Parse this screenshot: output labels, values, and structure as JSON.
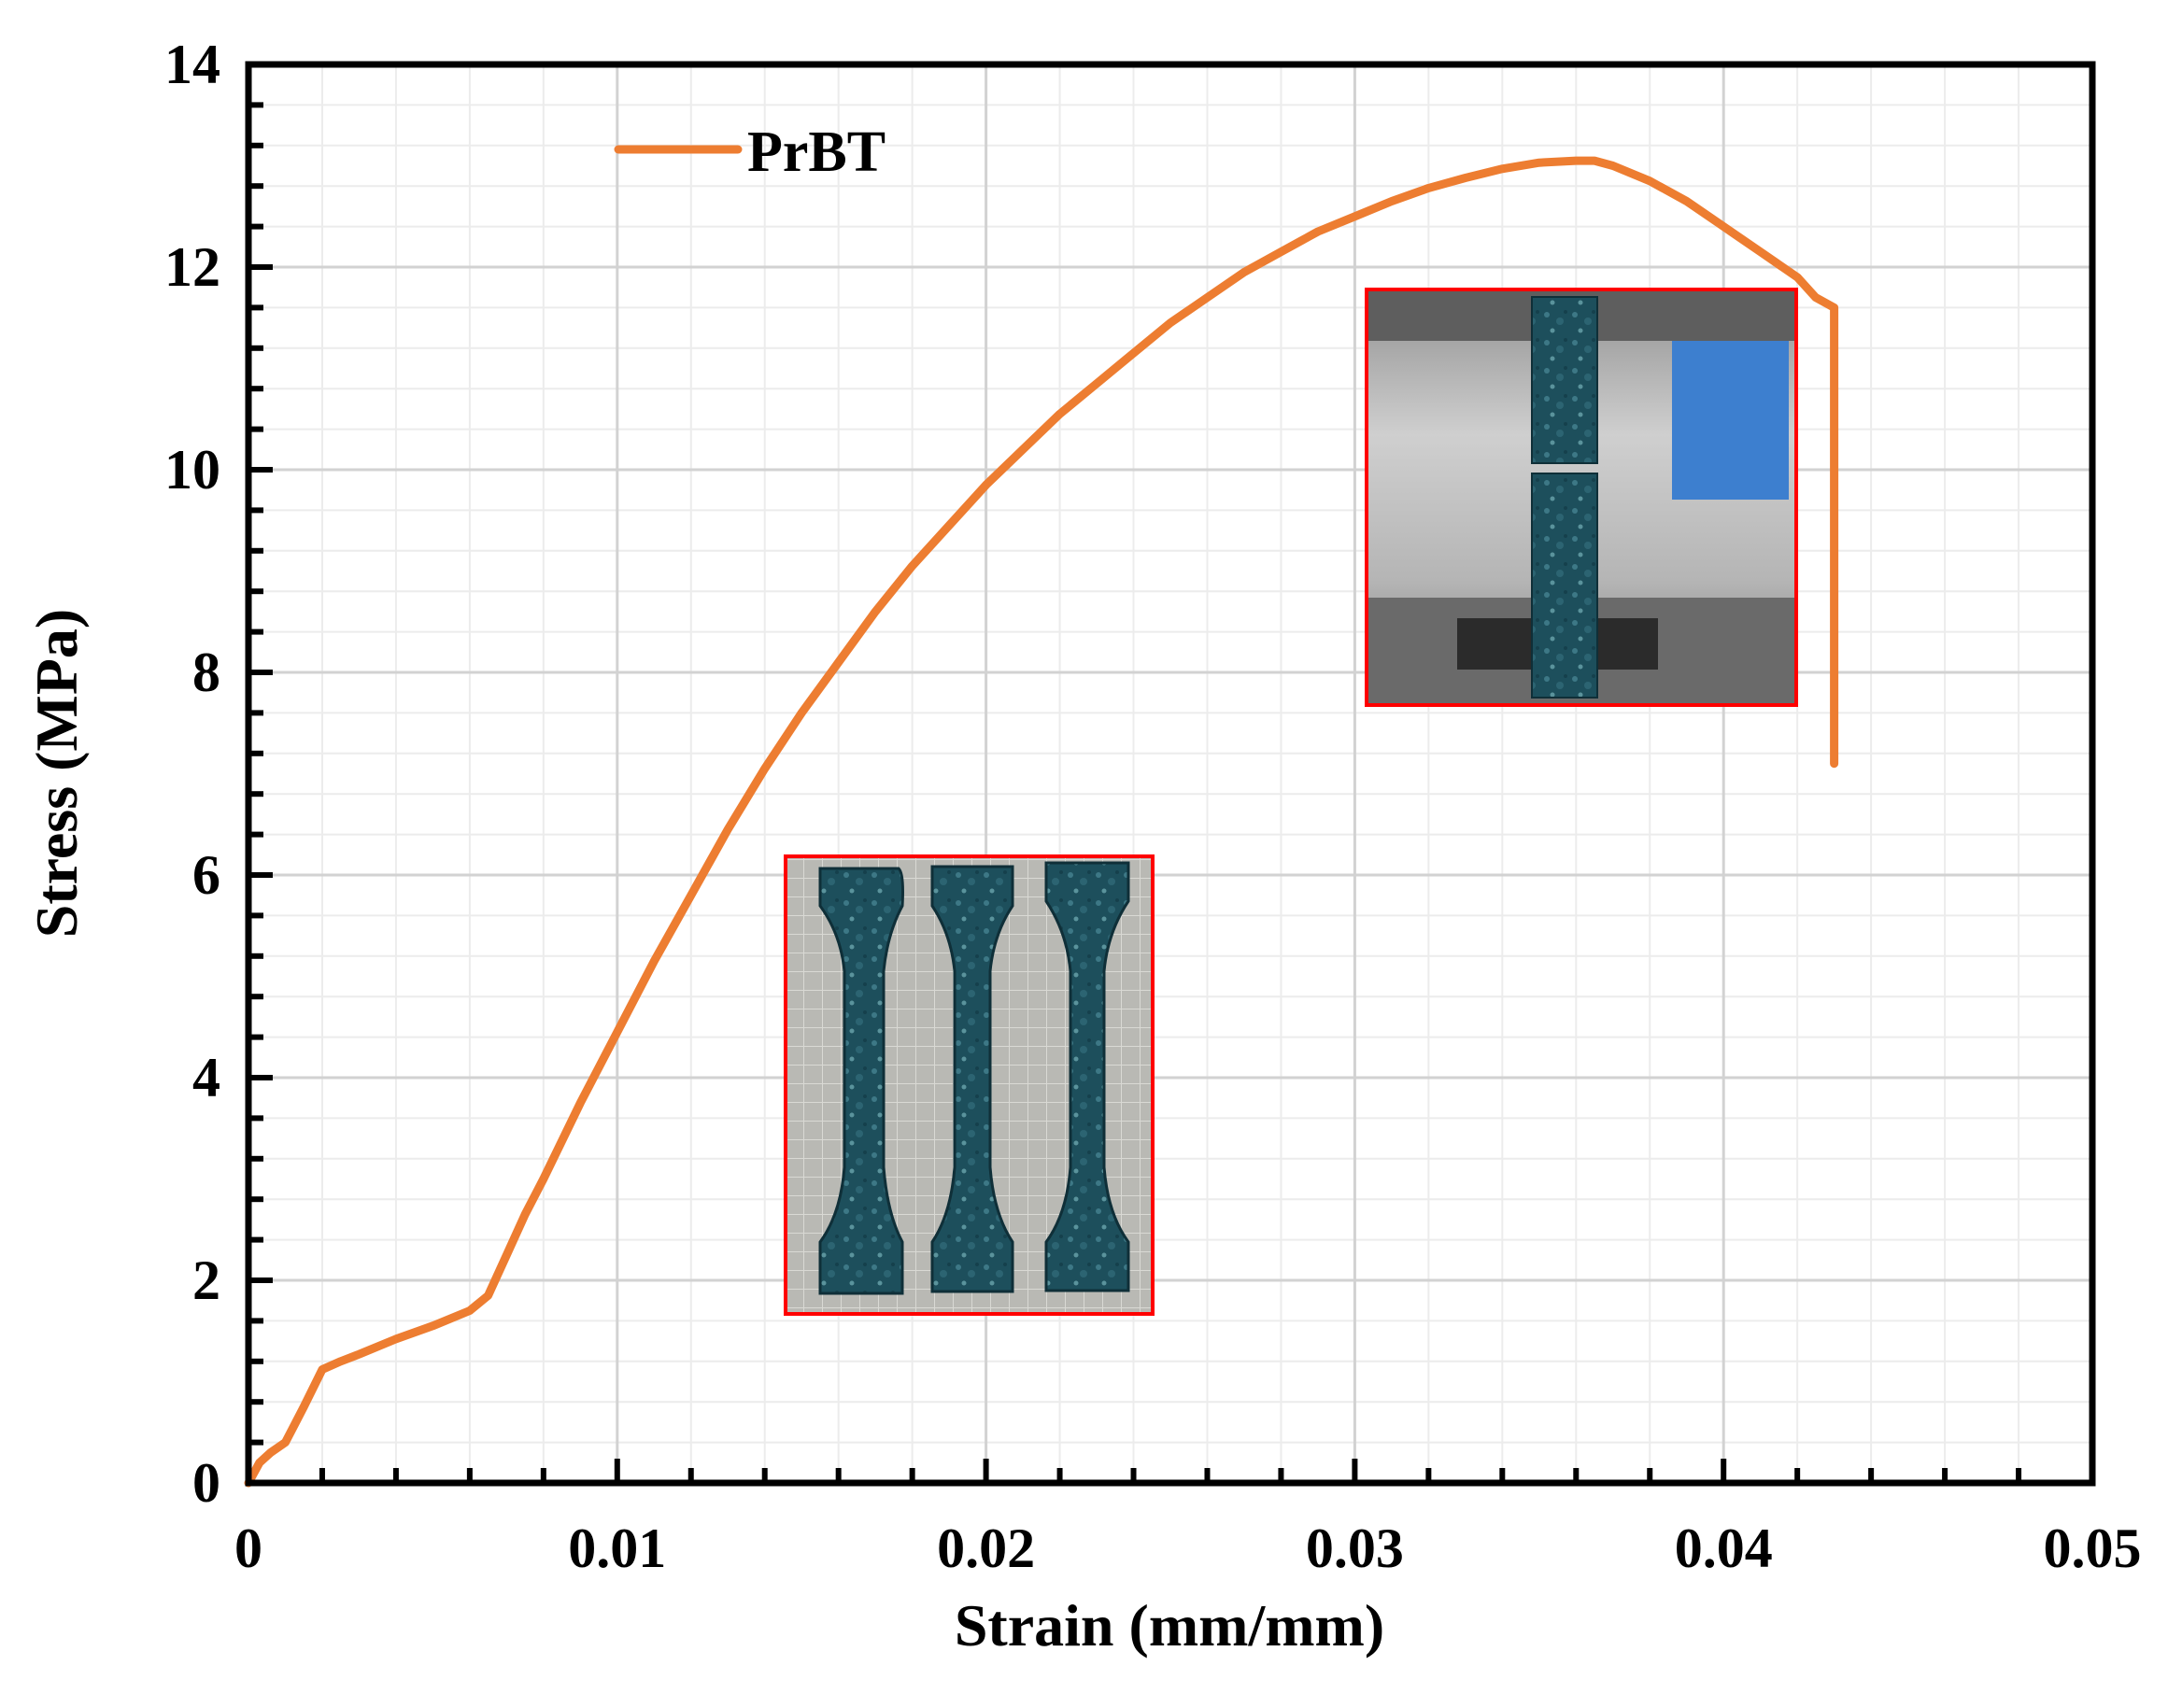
{
  "chart_data": {
    "type": "line",
    "title": "",
    "xlabel": "Strain (mm/mm)",
    "ylabel": "Stress (MPa)",
    "xlim": [
      0,
      0.05
    ],
    "ylim": [
      0,
      14
    ],
    "x_ticks": [
      0,
      0.01,
      0.02,
      0.03,
      0.04,
      0.05
    ],
    "x_tick_labels": [
      "0",
      "0.01",
      "0.02",
      "0.03",
      "0.04",
      "0.05"
    ],
    "y_ticks": [
      0,
      2,
      4,
      6,
      8,
      10,
      12,
      14
    ],
    "y_tick_labels": [
      "0",
      "2",
      "4",
      "6",
      "8",
      "10",
      "12",
      "14"
    ],
    "grid": true,
    "legend": {
      "position": "top-left",
      "entries": [
        "PrBT"
      ]
    },
    "series": [
      {
        "name": "PrBT",
        "color": "#ED7D31",
        "x": [
          0,
          0.0003,
          0.0006,
          0.001,
          0.0015,
          0.002,
          0.0025,
          0.003,
          0.004,
          0.005,
          0.006,
          0.0065,
          0.007,
          0.0075,
          0.008,
          0.009,
          0.01,
          0.011,
          0.012,
          0.013,
          0.014,
          0.015,
          0.016,
          0.017,
          0.018,
          0.019,
          0.02,
          0.021,
          0.022,
          0.023,
          0.024,
          0.025,
          0.026,
          0.027,
          0.028,
          0.029,
          0.03,
          0.031,
          0.032,
          0.033,
          0.034,
          0.035,
          0.036,
          0.0365,
          0.037,
          0.038,
          0.039,
          0.04,
          0.041,
          0.042,
          0.0425,
          0.043,
          0.043,
          0.043
        ],
        "y": [
          0,
          0.2,
          0.3,
          0.4,
          0.75,
          1.12,
          1.2,
          1.27,
          1.42,
          1.55,
          1.7,
          1.85,
          2.25,
          2.65,
          3.0,
          3.75,
          4.45,
          5.15,
          5.8,
          6.45,
          7.05,
          7.6,
          8.1,
          8.6,
          9.05,
          9.45,
          9.85,
          10.2,
          10.55,
          10.85,
          11.15,
          11.45,
          11.7,
          11.95,
          12.15,
          12.35,
          12.5,
          12.65,
          12.78,
          12.88,
          12.97,
          13.03,
          13.05,
          13.05,
          13.0,
          12.85,
          12.65,
          12.4,
          12.15,
          11.9,
          11.7,
          11.6,
          9.0,
          7.1
        ]
      }
    ],
    "insets": [
      {
        "description": "Photo of three dog-bone tensile specimens on a grid mat"
      },
      {
        "description": "Photo of a fractured specimen held in testing machine grips"
      }
    ]
  }
}
